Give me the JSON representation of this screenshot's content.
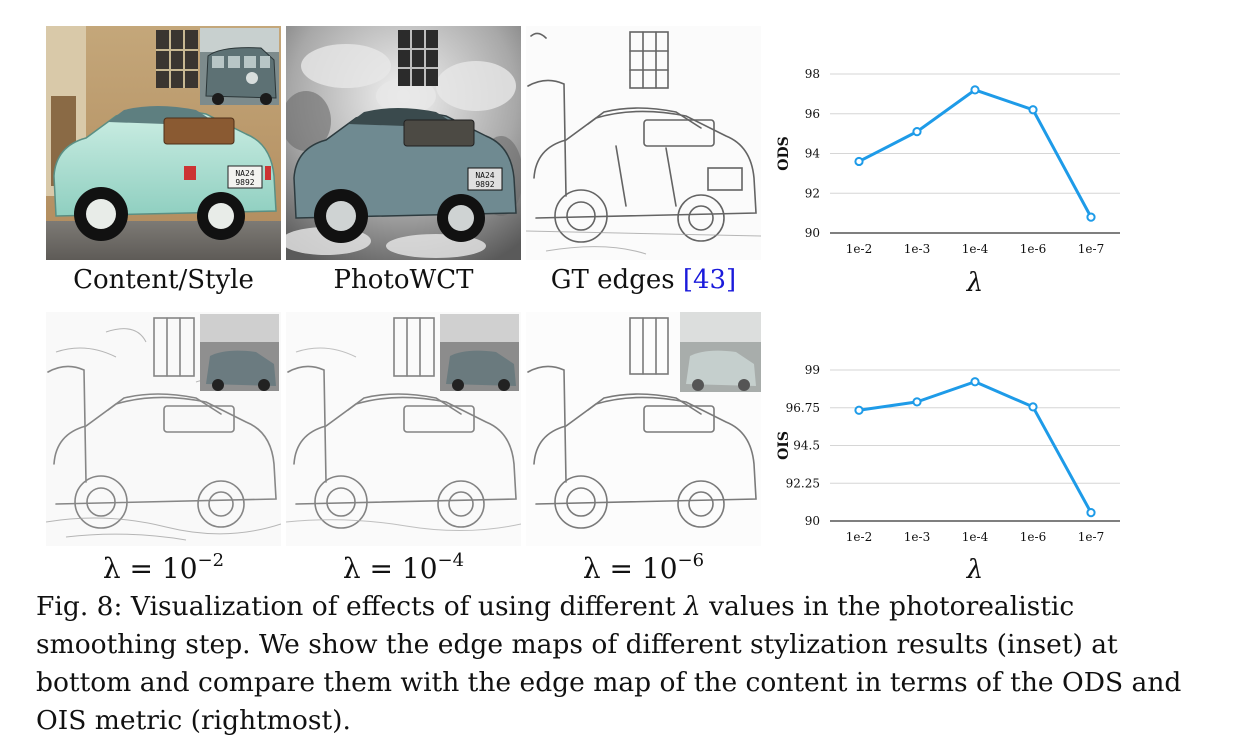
{
  "figure": {
    "top_row_captions": {
      "content_style": "Content/Style",
      "photowct": "PhotoWCT",
      "gt_edges": "GT edges",
      "gt_edges_ref": "[43]"
    },
    "bottom_row_captions": [
      {
        "base": "λ = 10",
        "exp": "−2"
      },
      {
        "base": "λ = 10",
        "exp": "−4"
      },
      {
        "base": "λ = 10",
        "exp": "−6"
      }
    ],
    "caption": {
      "label": "Fig. 8:",
      "text_before": "Visualization of effects of using different",
      "symbol": "λ",
      "text_after": "values in the photorealistic smoothing step. We show the edge maps of different stylization results (inset) at bottom and compare them with the edge map of the content in terms of the ODS and OIS metric (rightmost)."
    },
    "license_plate": {
      "line1": "NA24",
      "line2": "9892"
    }
  },
  "chart_data": [
    {
      "type": "line",
      "categories": [
        "1e-2",
        "1e-3",
        "1e-4",
        "1e-6",
        "1e-7"
      ],
      "values": [
        93.6,
        95.1,
        97.2,
        96.2,
        90.8
      ],
      "ylabel": "ODS",
      "xlabel": "λ",
      "ylim": [
        90,
        98
      ],
      "yticks": [
        "90",
        "92",
        "94",
        "96",
        "98"
      ],
      "ytick_values": [
        90,
        92,
        94,
        96,
        98
      ],
      "grid": true,
      "color": "#1e9be8"
    },
    {
      "type": "line",
      "categories": [
        "1e-2",
        "1e-3",
        "1e-4",
        "1e-6",
        "1e-7"
      ],
      "values": [
        96.6,
        97.1,
        98.3,
        96.8,
        90.5
      ],
      "ylabel": "OIS",
      "xlabel": "λ",
      "ylim": [
        90,
        99
      ],
      "yticks": [
        "90",
        "92.25",
        "94.5",
        "96.75",
        "99"
      ],
      "ytick_values": [
        90,
        92.25,
        94.5,
        96.75,
        99
      ],
      "grid": true,
      "color": "#1e9be8"
    }
  ]
}
